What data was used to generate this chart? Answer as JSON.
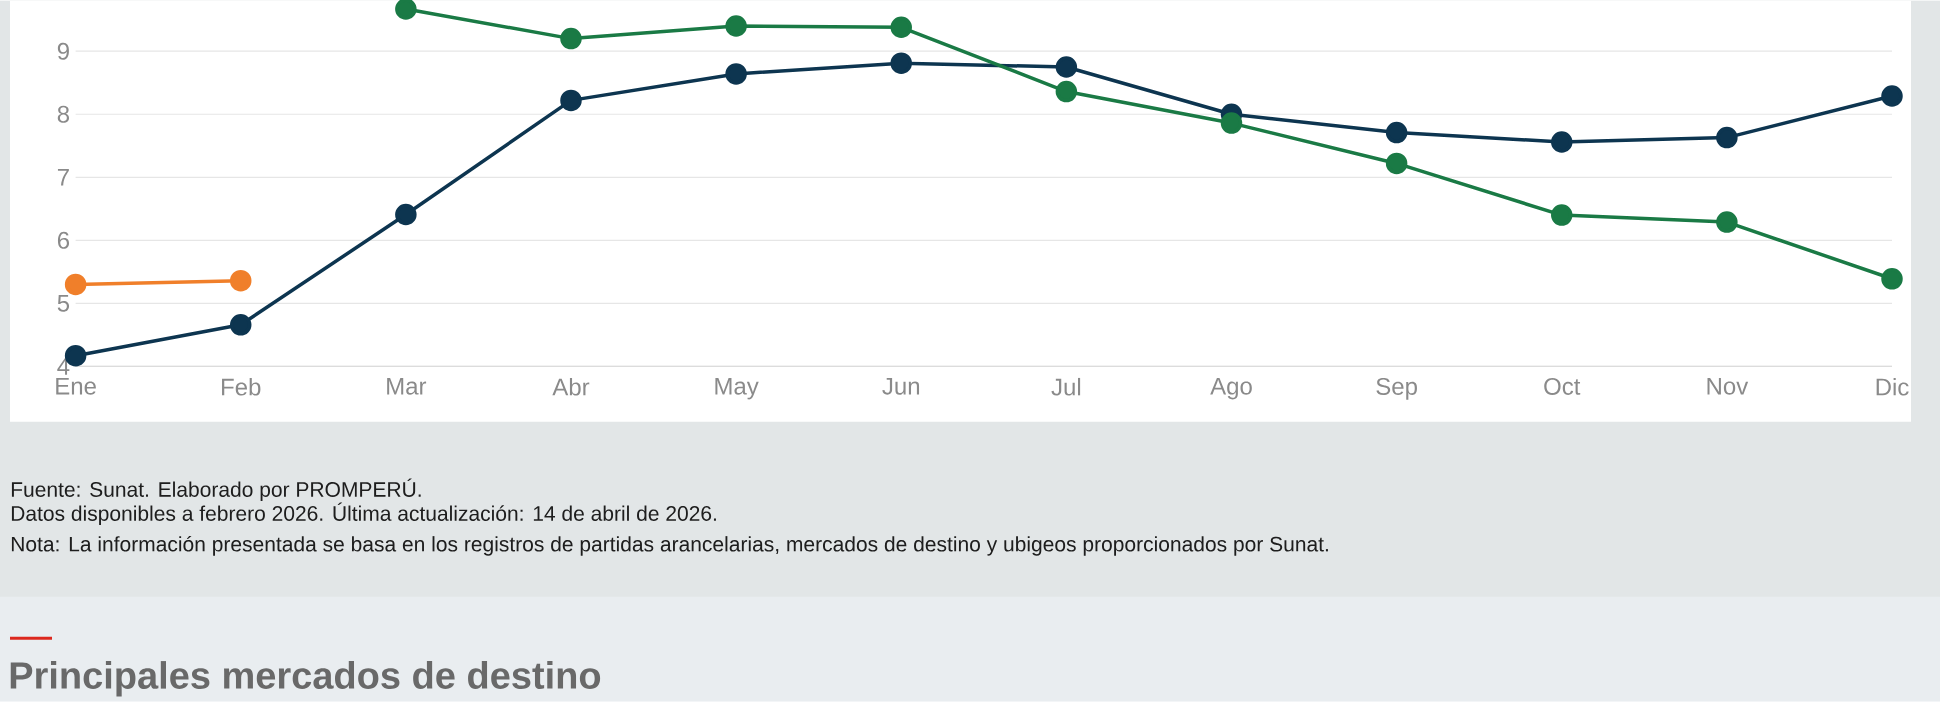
{
  "chart_data": {
    "type": "line",
    "categories": [
      "Ene",
      "Feb",
      "Mar",
      "Abr",
      "May",
      "Jun",
      "Jul",
      "Ago",
      "Sep",
      "Oct",
      "Nov",
      "Dic"
    ],
    "series": [
      {
        "color": "#0d3550",
        "values": [
          4.17,
          4.66,
          6.41,
          8.22,
          8.64,
          8.81,
          8.75,
          8.0,
          7.71,
          7.56,
          7.63,
          8.29
        ]
      },
      {
        "color": "#1a7a45",
        "values": [
          null,
          null,
          9.67,
          9.2,
          9.4,
          9.38,
          8.36,
          7.86,
          7.22,
          6.4,
          6.29,
          5.39
        ]
      },
      {
        "color": "#f07f2a",
        "values": [
          5.3,
          5.36,
          null,
          null,
          null,
          null,
          null,
          null,
          null,
          null,
          null,
          null
        ]
      }
    ],
    "ylim": [
      4,
      9.8
    ],
    "yticks": [
      4,
      5,
      6,
      7,
      8,
      9
    ],
    "grid": "y",
    "marker": "circle",
    "annotations": [
      "Fuente: Sunat. Elaborado por PROMPERÚ.",
      "Datos disponibles a febrero 2026. Última actualización: 14 de abril de 2026.",
      "Nota: La información presentada se basa en los registros de partidas arancelarias, mercados de destino y ubigeos proporcionados por Sunat.",
      "Principales mercados de destino"
    ]
  }
}
